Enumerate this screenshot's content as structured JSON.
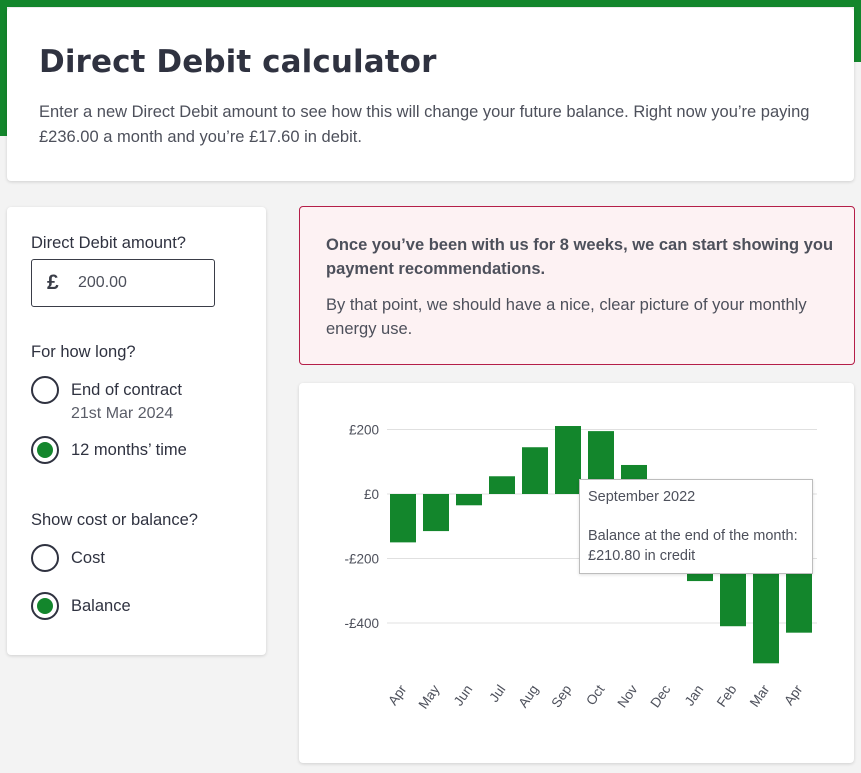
{
  "header": {
    "title": "Direct Debit calculator",
    "intro": "Enter a new Direct Debit amount to see how this will change your future balance. Right now you’re paying £236.00 a month and you’re £17.60 in debit."
  },
  "calculator": {
    "amount_label": "Direct Debit amount?",
    "currency_symbol": "£",
    "amount_value": "200.00",
    "duration_label": "For how long?",
    "duration_options": [
      {
        "label": "End of contract",
        "sublabel": "21st Mar 2024",
        "selected": false
      },
      {
        "label": "12 months’ time",
        "sublabel": "",
        "selected": true
      }
    ],
    "display_label": "Show cost or balance?",
    "display_options": [
      {
        "label": "Cost",
        "selected": false
      },
      {
        "label": "Balance",
        "selected": true
      }
    ]
  },
  "notice": {
    "heading": "Once you’ve been with us for 8 weeks, we can start showing you payment recommendations.",
    "body": "By that point, we should have a nice, clear picture of your monthly energy use."
  },
  "colors": {
    "brand_green": "#13862c",
    "notice_border": "#b41e48",
    "notice_background": "#fdf2f3"
  },
  "chart_data": {
    "type": "bar",
    "categories": [
      "Apr",
      "May",
      "Jun",
      "Jul",
      "Aug",
      "Sep",
      "Oct",
      "Nov",
      "Dec",
      "Jan",
      "Feb",
      "Mar",
      "Apr"
    ],
    "values": [
      -150,
      -115,
      -35,
      55,
      145,
      210.8,
      195,
      90,
      -15,
      -270,
      -410,
      -525,
      -430
    ],
    "ylim": [
      -500,
      250
    ],
    "yticks": [
      200,
      0,
      -200,
      -400
    ],
    "ytick_labels": [
      "£200",
      "£0",
      "-£200",
      "-£400"
    ],
    "grid": true,
    "title": "",
    "xlabel": "",
    "ylabel": "",
    "tooltip": {
      "title": "September 2022",
      "line1": "Balance at the end of the month:",
      "line2": "£210.80 in credit"
    }
  }
}
